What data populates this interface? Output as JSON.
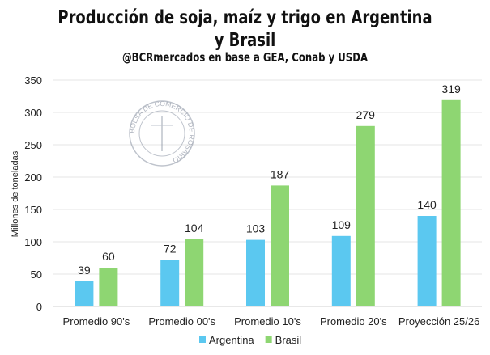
{
  "chart_data": {
    "type": "bar",
    "title": "Producción de soja, maíz y trigo en Argentina y Brasil",
    "subtitle": "@BCRmercados en base a GEA, Conab y USDA",
    "ylabel": "Millones de toneladas",
    "xlabel": "",
    "ylim": [
      0,
      350
    ],
    "yticks": [
      0,
      50,
      100,
      150,
      200,
      250,
      300,
      350
    ],
    "grid": true,
    "legend": "bottom",
    "categories": [
      "Promedio 90's",
      "Promedio 00's",
      "Promedio 10's",
      "Promedio 20's",
      "Proyección 25/26"
    ],
    "series": [
      {
        "name": "Argentina",
        "values": [
          39,
          72,
          103,
          109,
          140
        ],
        "color": "#5BC8F0"
      },
      {
        "name": "Brasil",
        "values": [
          60,
          104,
          187,
          279,
          319
        ],
        "color": "#8ED672"
      }
    ]
  },
  "watermark": {
    "text": "BOLSA DE COMERCIO DE ROSARIO"
  }
}
